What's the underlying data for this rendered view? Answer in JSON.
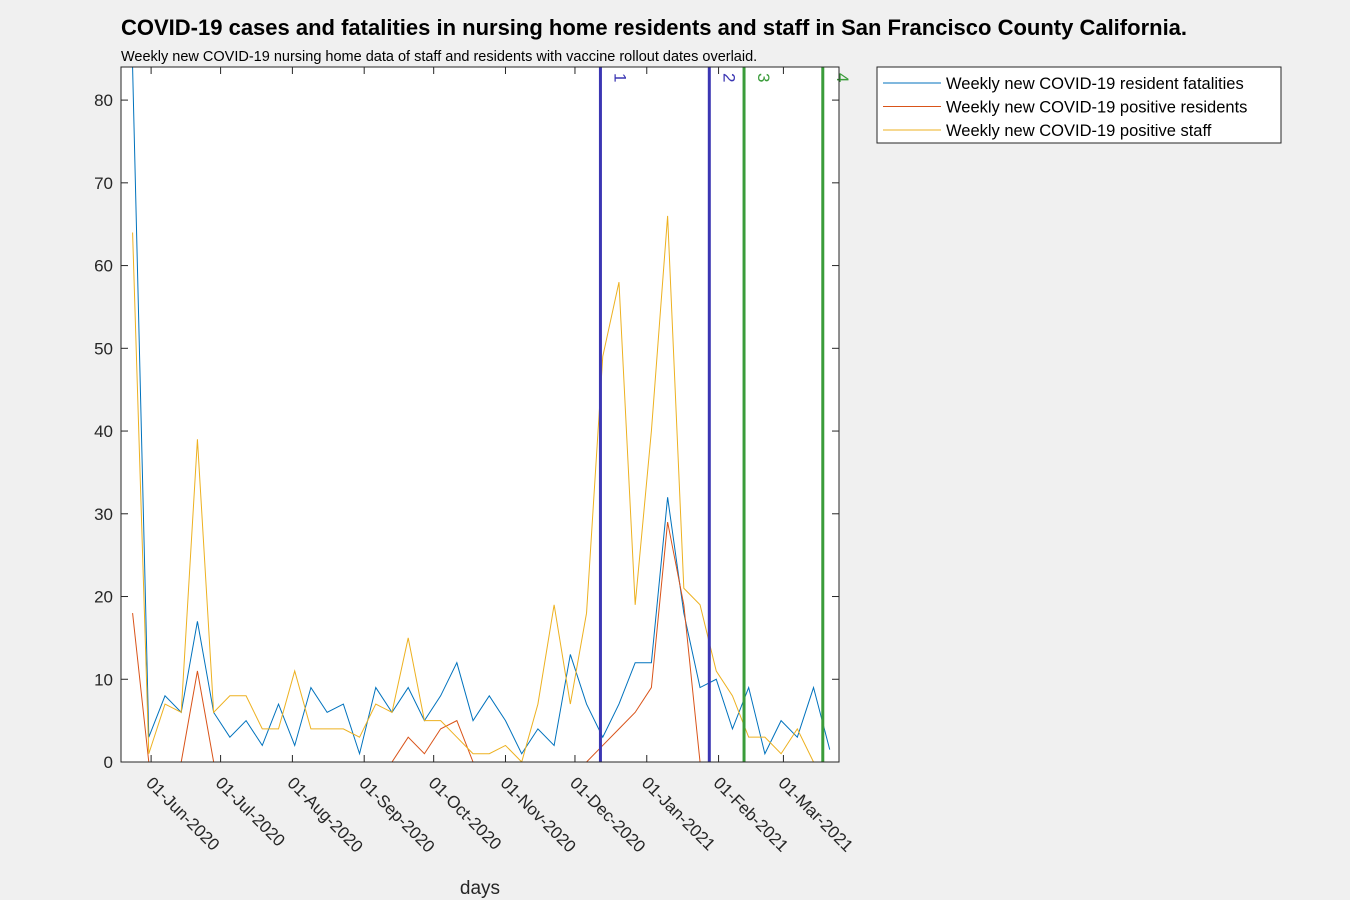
{
  "chart_data": {
    "type": "line",
    "title": "COVID-19 cases and fatalities in nursing home residents and staff in San Francisco County California.",
    "subtitle": "Weekly new COVID-19 nursing home data of staff and residents with vaccine rollout dates overlaid.",
    "xlabel": "days",
    "ylabel": "",
    "ylim": [
      0,
      84
    ],
    "yticks": [
      0,
      10,
      20,
      30,
      40,
      50,
      60,
      70,
      80
    ],
    "x_start_date": "2020-05-24",
    "x_step_days": 7,
    "xlim_days": [
      -5,
      305
    ],
    "xticks": [
      {
        "day": 8,
        "label": "01-Jun-2020"
      },
      {
        "day": 38,
        "label": "01-Jul-2020"
      },
      {
        "day": 69,
        "label": "01-Aug-2020"
      },
      {
        "day": 100,
        "label": "01-Sep-2020"
      },
      {
        "day": 130,
        "label": "01-Oct-2020"
      },
      {
        "day": 161,
        "label": "01-Nov-2020"
      },
      {
        "day": 191,
        "label": "01-Dec-2020"
      },
      {
        "day": 222,
        "label": "01-Jan-2021"
      },
      {
        "day": 253,
        "label": "01-Feb-2021"
      },
      {
        "day": 281,
        "label": "01-Mar-2021"
      }
    ],
    "series": [
      {
        "name": "Weekly new COVID-19 resident fatalities",
        "color": "#0072bd",
        "values": [
          84,
          3,
          8,
          6,
          17,
          6,
          3,
          5,
          2,
          7,
          2,
          9,
          6,
          7,
          1,
          9,
          6,
          9,
          5,
          8,
          12,
          5,
          8,
          5,
          1,
          4,
          2,
          13,
          7,
          3,
          7,
          12,
          12,
          32,
          18,
          9,
          10,
          4,
          9,
          1,
          5,
          3,
          9,
          1.5
        ]
      },
      {
        "name": "Weekly new COVID-19 positive residents",
        "color": "#d95319",
        "values": [
          18,
          0,
          0,
          0,
          11,
          0,
          0,
          0,
          0,
          0,
          0,
          0,
          0,
          0,
          0,
          0,
          0,
          3,
          1,
          4,
          5,
          0,
          0,
          0,
          0,
          0,
          0,
          0,
          0,
          2,
          4,
          6,
          9,
          29,
          19,
          0,
          0,
          0,
          0,
          0,
          0,
          0,
          0,
          0
        ]
      },
      {
        "name": "Weekly new COVID-19 positive staff",
        "color": "#edb120",
        "values": [
          64,
          1,
          7,
          6,
          39,
          6,
          8,
          8,
          4,
          4,
          11,
          4,
          4,
          4,
          3,
          7,
          6,
          15,
          5,
          5,
          3,
          1,
          1,
          2,
          0,
          7,
          19,
          7,
          18,
          49,
          58,
          19,
          40,
          66,
          21,
          19,
          11,
          8,
          3,
          3,
          1,
          4,
          0,
          0
        ]
      }
    ],
    "vlines": [
      {
        "label": "1",
        "day": 202,
        "color": "#3b36b3"
      },
      {
        "label": "2",
        "day": 249,
        "color": "#3b36b3"
      },
      {
        "label": "3",
        "day": 264,
        "color": "#3a9c3a"
      },
      {
        "label": "4",
        "day": 298,
        "color": "#3a9c3a"
      }
    ],
    "legend_position": "outside-top-right"
  }
}
